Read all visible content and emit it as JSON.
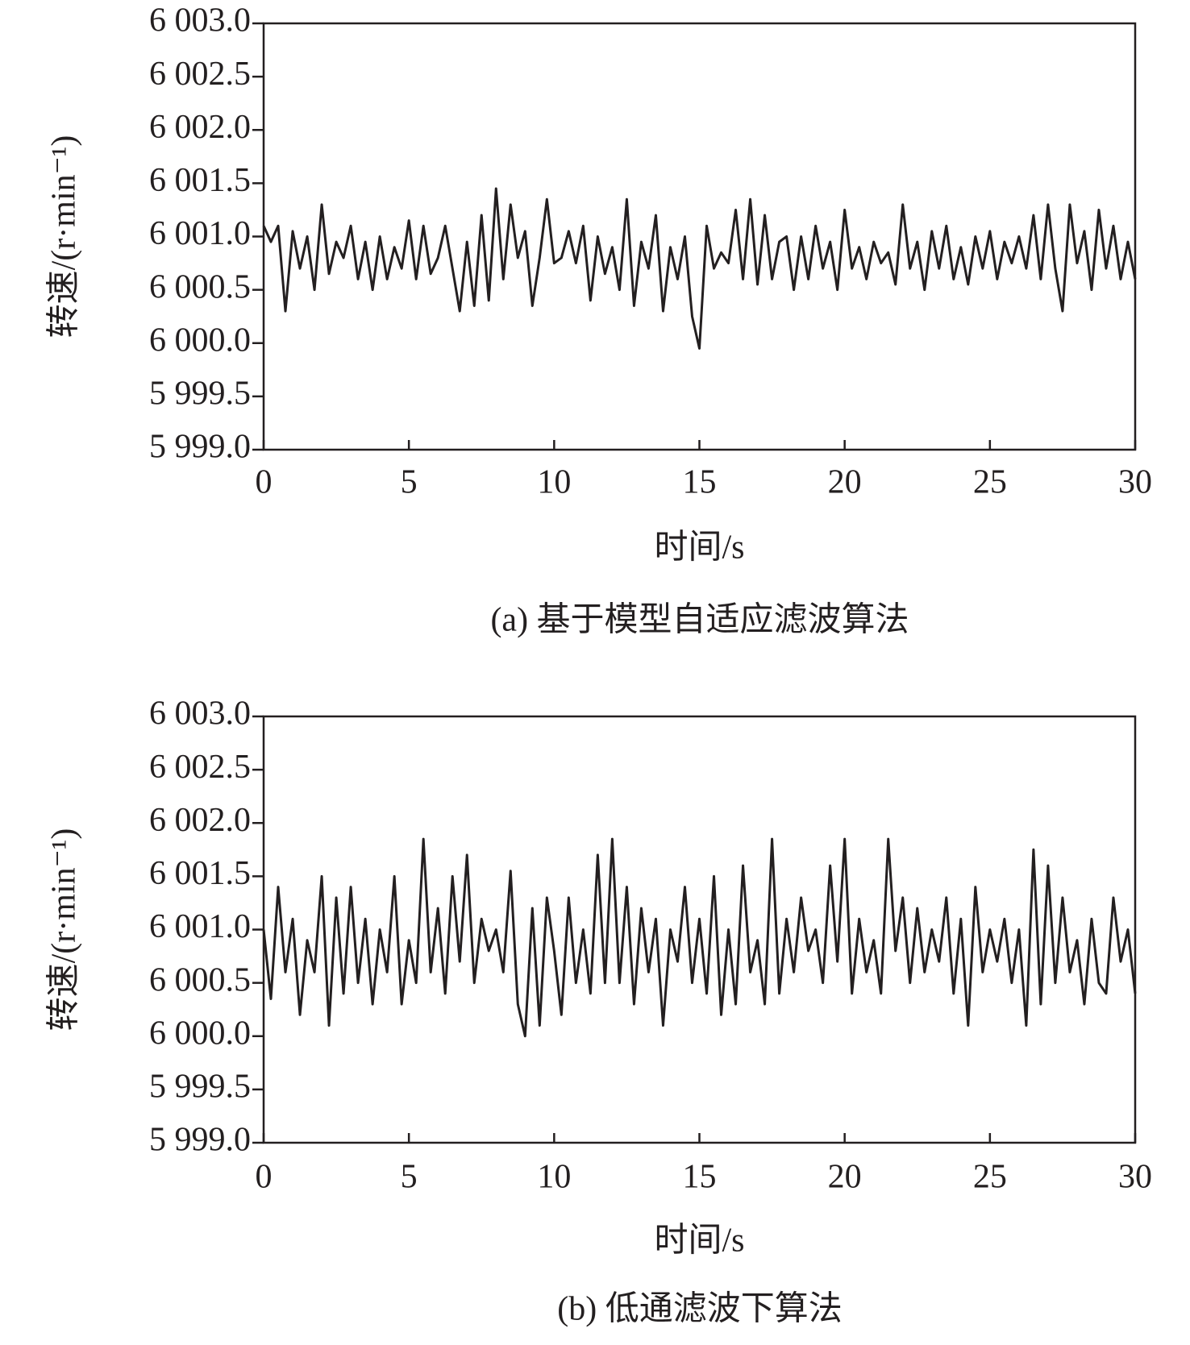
{
  "chart_data": [
    {
      "type": "line",
      "title": "(a) 基于模型自适应滤波算法",
      "xlabel": "时间/s",
      "ylabel": "转速/(r·min⁻¹)",
      "color": "#231f20",
      "x": [
        0,
        0.25,
        0.5,
        0.75,
        1,
        1.25,
        1.5,
        1.75,
        2,
        2.25,
        2.5,
        2.75,
        3,
        3.25,
        3.5,
        3.75,
        4,
        4.25,
        4.5,
        4.75,
        5,
        5.25,
        5.5,
        5.75,
        6,
        6.25,
        6.5,
        6.75,
        7,
        7.25,
        7.5,
        7.75,
        8,
        8.25,
        8.5,
        8.75,
        9,
        9.25,
        9.5,
        9.75,
        10,
        10.25,
        10.5,
        10.75,
        11,
        11.25,
        11.5,
        11.75,
        12,
        12.25,
        12.5,
        12.75,
        13,
        13.25,
        13.5,
        13.75,
        14,
        14.25,
        14.5,
        14.75,
        15,
        15.25,
        15.5,
        15.75,
        16,
        16.25,
        16.5,
        16.75,
        17,
        17.25,
        17.5,
        17.75,
        18,
        18.25,
        18.5,
        18.75,
        19,
        19.25,
        19.5,
        19.75,
        20,
        20.25,
        20.5,
        20.75,
        21,
        21.25,
        21.5,
        21.75,
        22,
        22.25,
        22.5,
        22.75,
        23,
        23.25,
        23.5,
        23.75,
        24,
        24.25,
        24.5,
        24.75,
        25,
        25.25,
        25.5,
        25.75,
        26,
        26.25,
        26.5,
        26.75,
        27,
        27.25,
        27.5,
        27.75,
        28,
        28.25,
        28.5,
        28.75,
        29,
        29.25,
        29.5,
        29.75,
        30
      ],
      "values": [
        6001.1,
        6000.95,
        6001.1,
        6000.3,
        6001.05,
        6000.7,
        6001.0,
        6000.5,
        6001.3,
        6000.65,
        6000.95,
        6000.8,
        6001.1,
        6000.6,
        6000.95,
        6000.5,
        6001.0,
        6000.6,
        6000.9,
        6000.7,
        6001.15,
        6000.6,
        6001.1,
        6000.65,
        6000.8,
        6001.1,
        6000.7,
        6000.3,
        6000.95,
        6000.35,
        6001.2,
        6000.4,
        6001.45,
        6000.6,
        6001.3,
        6000.8,
        6001.05,
        6000.35,
        6000.8,
        6001.35,
        6000.75,
        6000.8,
        6001.05,
        6000.75,
        6001.1,
        6000.4,
        6001.0,
        6000.65,
        6000.9,
        6000.5,
        6001.35,
        6000.35,
        6000.95,
        6000.7,
        6001.2,
        6000.3,
        6000.9,
        6000.6,
        6001.0,
        6000.25,
        5999.95,
        6001.1,
        6000.7,
        6000.85,
        6000.75,
        6001.25,
        6000.6,
        6001.35,
        6000.55,
        6001.2,
        6000.6,
        6000.95,
        6001.0,
        6000.5,
        6001.0,
        6000.6,
        6001.1,
        6000.7,
        6000.95,
        6000.5,
        6001.25,
        6000.7,
        6000.9,
        6000.6,
        6000.95,
        6000.75,
        6000.85,
        6000.55,
        6001.3,
        6000.7,
        6000.95,
        6000.5,
        6001.05,
        6000.7,
        6001.1,
        6000.6,
        6000.9,
        6000.55,
        6001.0,
        6000.7,
        6001.05,
        6000.6,
        6000.95,
        6000.75,
        6001.0,
        6000.7,
        6001.2,
        6000.6,
        6001.3,
        6000.7,
        6000.3,
        6001.3,
        6000.75,
        6001.05,
        6000.5,
        6001.25,
        6000.7,
        6001.1,
        6000.6,
        6000.95,
        6000.6
      ],
      "xlim": [
        0,
        30
      ],
      "xticks": [
        0,
        5,
        10,
        15,
        20,
        25,
        30
      ],
      "ylim": [
        5999,
        6003
      ],
      "yticks": [
        {
          "value": 5999,
          "label": "5 999.0"
        },
        {
          "value": 5999.5,
          "label": "5 999.5"
        },
        {
          "value": 6000,
          "label": "6 000.0"
        },
        {
          "value": 6000.5,
          "label": "6 000.5"
        },
        {
          "value": 6001,
          "label": "6 001.0"
        },
        {
          "value": 6001.5,
          "label": "6 001.5"
        },
        {
          "value": 6002,
          "label": "6 002.0"
        },
        {
          "value": 6002.5,
          "label": "6 002.5"
        },
        {
          "value": 6003,
          "label": "6 003.0"
        }
      ]
    },
    {
      "type": "line",
      "title": "(b) 低通滤波下算法",
      "xlabel": "时间/s",
      "ylabel": "转速/(r·min⁻¹)",
      "color": "#231f20",
      "x": [
        0,
        0.25,
        0.5,
        0.75,
        1,
        1.25,
        1.5,
        1.75,
        2,
        2.25,
        2.5,
        2.75,
        3,
        3.25,
        3.5,
        3.75,
        4,
        4.25,
        4.5,
        4.75,
        5,
        5.25,
        5.5,
        5.75,
        6,
        6.25,
        6.5,
        6.75,
        7,
        7.25,
        7.5,
        7.75,
        8,
        8.25,
        8.5,
        8.75,
        9,
        9.25,
        9.5,
        9.75,
        10,
        10.25,
        10.5,
        10.75,
        11,
        11.25,
        11.5,
        11.75,
        12,
        12.25,
        12.5,
        12.75,
        13,
        13.25,
        13.5,
        13.75,
        14,
        14.25,
        14.5,
        14.75,
        15,
        15.25,
        15.5,
        15.75,
        16,
        16.25,
        16.5,
        16.75,
        17,
        17.25,
        17.5,
        17.75,
        18,
        18.25,
        18.5,
        18.75,
        19,
        19.25,
        19.5,
        19.75,
        20,
        20.25,
        20.5,
        20.75,
        21,
        21.25,
        21.5,
        21.75,
        22,
        22.25,
        22.5,
        22.75,
        23,
        23.25,
        23.5,
        23.75,
        24,
        24.25,
        24.5,
        24.75,
        25,
        25.25,
        25.5,
        25.75,
        26,
        26.25,
        26.5,
        26.75,
        27,
        27.25,
        27.5,
        27.75,
        28,
        28.25,
        28.5,
        28.75,
        29,
        29.25,
        29.5,
        29.75,
        30
      ],
      "values": [
        6001.0,
        6000.35,
        6001.4,
        6000.6,
        6001.1,
        6000.2,
        6000.9,
        6000.6,
        6001.5,
        6000.1,
        6001.3,
        6000.4,
        6001.4,
        6000.5,
        6001.1,
        6000.3,
        6001.0,
        6000.6,
        6001.5,
        6000.3,
        6000.9,
        6000.5,
        6001.85,
        6000.6,
        6001.2,
        6000.4,
        6001.5,
        6000.7,
        6001.7,
        6000.5,
        6001.1,
        6000.8,
        6001.0,
        6000.6,
        6001.55,
        6000.3,
        6000.0,
        6001.2,
        6000.1,
        6001.3,
        6000.8,
        6000.2,
        6001.3,
        6000.5,
        6001.0,
        6000.4,
        6001.7,
        6000.5,
        6001.85,
        6000.5,
        6001.4,
        6000.3,
        6001.2,
        6000.6,
        6001.1,
        6000.1,
        6001.0,
        6000.7,
        6001.4,
        6000.5,
        6001.1,
        6000.4,
        6001.5,
        6000.2,
        6001.0,
        6000.3,
        6001.6,
        6000.6,
        6000.9,
        6000.3,
        6001.85,
        6000.4,
        6001.1,
        6000.6,
        6001.3,
        6000.8,
        6001.0,
        6000.5,
        6001.6,
        6000.7,
        6001.85,
        6000.4,
        6001.1,
        6000.6,
        6000.9,
        6000.4,
        6001.85,
        6000.8,
        6001.3,
        6000.5,
        6001.2,
        6000.6,
        6001.0,
        6000.7,
        6001.3,
        6000.4,
        6001.1,
        6000.1,
        6001.4,
        6000.6,
        6001.0,
        6000.7,
        6001.1,
        6000.5,
        6001.0,
        6000.1,
        6001.75,
        6000.3,
        6001.6,
        6000.5,
        6001.3,
        6000.6,
        6000.9,
        6000.3,
        6001.1,
        6000.5,
        6000.4,
        6001.3,
        6000.7,
        6001.0,
        6000.4
      ],
      "xlim": [
        0,
        30
      ],
      "xticks": [
        0,
        5,
        10,
        15,
        20,
        25,
        30
      ],
      "ylim": [
        5999,
        6003
      ],
      "yticks": [
        {
          "value": 5999,
          "label": "5 999.0"
        },
        {
          "value": 5999.5,
          "label": "5 999.5"
        },
        {
          "value": 6000,
          "label": "6 000.0"
        },
        {
          "value": 6000.5,
          "label": "6 000.5"
        },
        {
          "value": 6001,
          "label": "6 001.0"
        },
        {
          "value": 6001.5,
          "label": "6 001.5"
        },
        {
          "value": 6002,
          "label": "6 002.0"
        },
        {
          "value": 6002.5,
          "label": "6 002.5"
        },
        {
          "value": 6003,
          "label": "6 003.0"
        }
      ]
    }
  ]
}
